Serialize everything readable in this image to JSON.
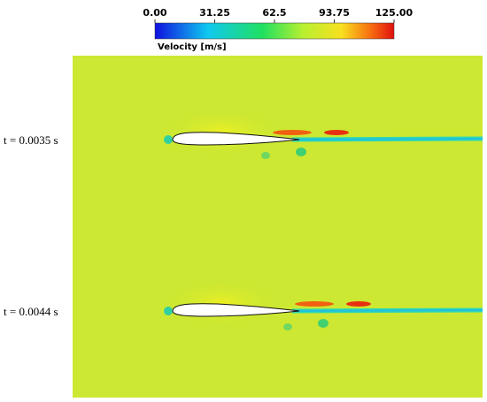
{
  "colorbar": {
    "title": "Velocity [m/s]",
    "lim": [
      0,
      125
    ],
    "ticks": [
      {
        "value": 0,
        "label": "0.00"
      },
      31.25,
      62.5,
      93.75,
      {
        "value": 125,
        "label": "125.00"
      }
    ]
  },
  "panels": [
    {
      "label": "t = 0.0035 s"
    },
    {
      "label": "t = 0.0044 s"
    }
  ]
}
